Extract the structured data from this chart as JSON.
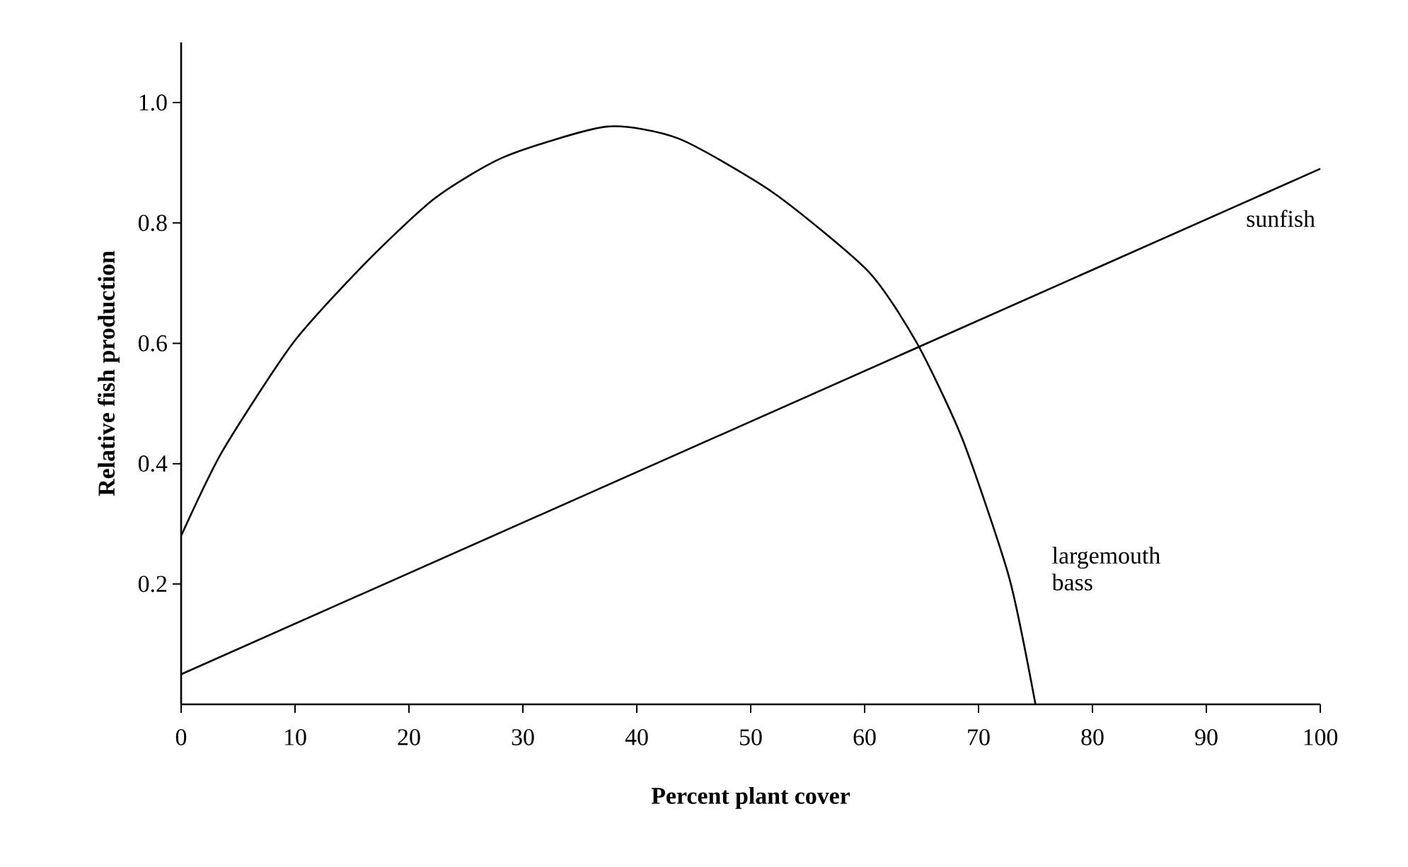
{
  "chart_data": {
    "type": "line",
    "xlabel": "Percent plant cover",
    "ylabel": "Relative fish production",
    "xlim": [
      0,
      100
    ],
    "ylim": [
      0,
      1.1
    ],
    "xticks": [
      0,
      10,
      20,
      30,
      40,
      50,
      60,
      70,
      80,
      90,
      100
    ],
    "yticks": [
      0.2,
      0.4,
      0.6,
      0.8,
      {
        "value": 1.0,
        "label": "1.0"
      }
    ],
    "series": [
      {
        "name": "largemouth bass",
        "color": "#000000",
        "x": [
          0,
          3.6,
          9.8,
          16,
          22.2,
          28.4,
          37.3,
          43.7,
          52,
          60.3,
          64.6,
          68.6,
          72.7,
          75
        ],
        "values": [
          0.28,
          0.42,
          0.6,
          0.73,
          0.84,
          0.91,
          0.96,
          0.94,
          0.85,
          0.72,
          0.6,
          0.44,
          0.21,
          0
        ]
      },
      {
        "name": "sunfish",
        "color": "#000000",
        "x": [
          0,
          100
        ],
        "values": [
          0.05,
          0.89
        ]
      }
    ]
  }
}
